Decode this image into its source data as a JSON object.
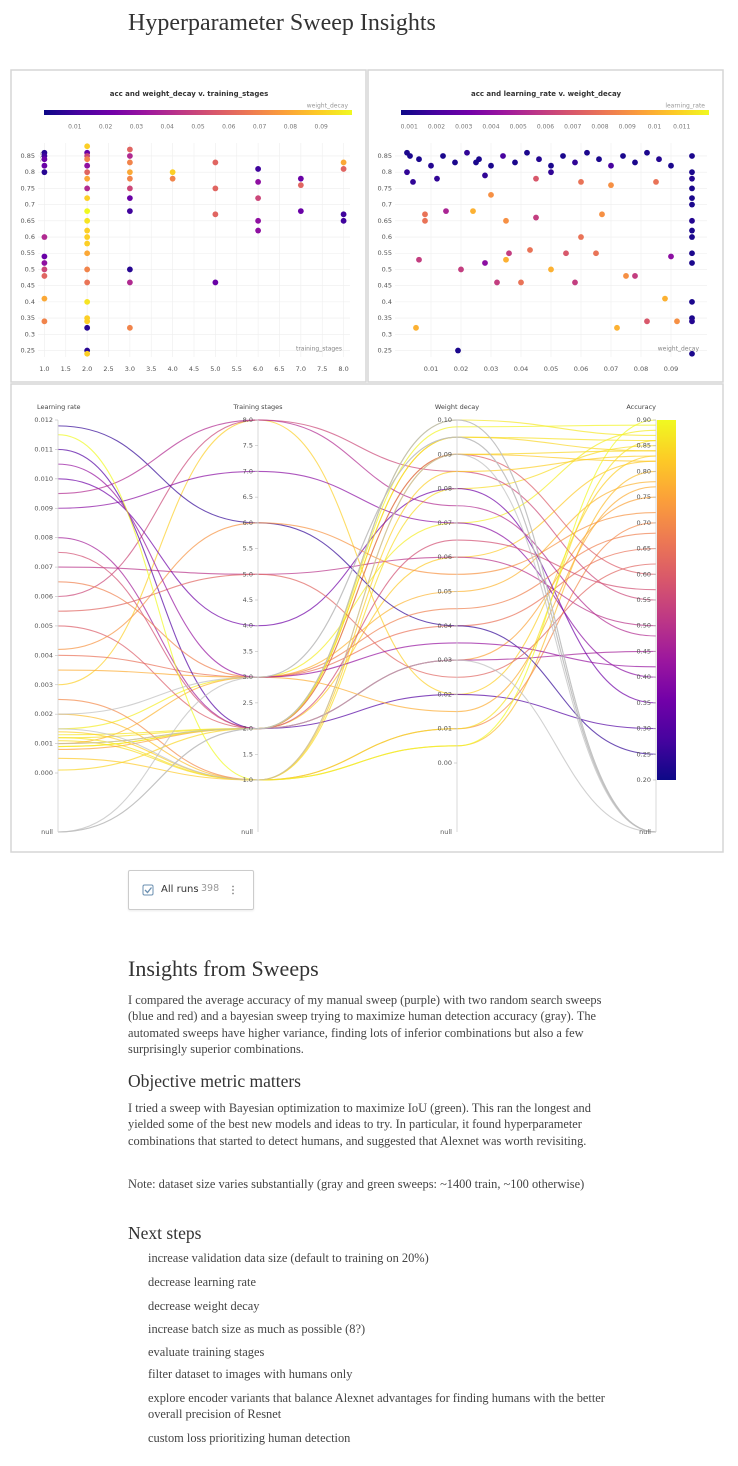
{
  "title": "Hyperparameter Sweep Insights",
  "chart_data": [
    {
      "type": "scatter",
      "title": "acc and weight_decay v. training_stages",
      "x_label": "training_stages",
      "y_label": "acc",
      "color_label": "weight_decay",
      "colormap": "plasma",
      "clim": [
        0,
        0.1
      ],
      "cticks": [
        0.01,
        0.02,
        0.03,
        0.04,
        0.05,
        0.06,
        0.07,
        0.08,
        0.09
      ],
      "xlim": [
        0.85,
        8.15
      ],
      "xticks": [
        {
          "value": 1,
          "label": "1.0"
        },
        {
          "value": 1.5,
          "label": "1.5"
        },
        {
          "value": 2,
          "label": "2.0"
        },
        {
          "value": 2.5,
          "label": "2.5"
        },
        {
          "value": 3,
          "label": "3.0"
        },
        {
          "value": 3.5,
          "label": "3.5"
        },
        {
          "value": 4,
          "label": "4.0"
        },
        {
          "value": 4.5,
          "label": "4.5"
        },
        {
          "value": 5,
          "label": "5.0"
        },
        {
          "value": 5.5,
          "label": "5.5"
        },
        {
          "value": 6,
          "label": "6.0"
        },
        {
          "value": 6.5,
          "label": "6.5"
        },
        {
          "value": 7,
          "label": "7.0"
        },
        {
          "value": 7.5,
          "label": "7.5"
        },
        {
          "value": 8,
          "label": "8.0"
        }
      ],
      "ylim": [
        0.23,
        0.89
      ],
      "yticks": [
        0.25,
        0.3,
        0.35,
        0.4,
        0.45,
        0.5,
        0.55,
        0.6,
        0.65,
        0.7,
        0.75,
        0.8,
        0.85
      ],
      "grid": true,
      "x": [
        1,
        1,
        1,
        1,
        1,
        1,
        1,
        1,
        1,
        1,
        1,
        1,
        2,
        2,
        2,
        2,
        2,
        2,
        2,
        2,
        2,
        2,
        2,
        2,
        2,
        2,
        2,
        2,
        2,
        2,
        2,
        2,
        2,
        2,
        2,
        3,
        3,
        3,
        3,
        3,
        3,
        3,
        3,
        3,
        3,
        3,
        4,
        4,
        5,
        5,
        5,
        5,
        6,
        6,
        6,
        6,
        6,
        7,
        7,
        7,
        8,
        8,
        8,
        8
      ],
      "values": [
        0.86,
        0.85,
        0.84,
        0.82,
        0.8,
        0.6,
        0.54,
        0.52,
        0.5,
        0.48,
        0.41,
        0.34,
        0.88,
        0.86,
        0.85,
        0.84,
        0.82,
        0.8,
        0.78,
        0.75,
        0.72,
        0.68,
        0.65,
        0.62,
        0.6,
        0.58,
        0.55,
        0.5,
        0.46,
        0.4,
        0.35,
        0.34,
        0.32,
        0.25,
        0.24,
        0.87,
        0.85,
        0.83,
        0.8,
        0.78,
        0.75,
        0.72,
        0.68,
        0.5,
        0.46,
        0.32,
        0.8,
        0.78,
        0.83,
        0.75,
        0.67,
        0.46,
        0.81,
        0.77,
        0.72,
        0.65,
        0.62,
        0.78,
        0.76,
        0.68,
        0.83,
        0.81,
        0.67,
        0.65
      ],
      "color_values": [
        0.005,
        0.01,
        0.02,
        0.02,
        0.005,
        0.04,
        0.02,
        0.03,
        0.05,
        0.06,
        0.08,
        0.07,
        0.09,
        0.02,
        0.05,
        0.07,
        0.03,
        0.06,
        0.08,
        0.04,
        0.09,
        0.1,
        0.095,
        0.09,
        0.09,
        0.09,
        0.08,
        0.07,
        0.065,
        0.095,
        0.09,
        0.09,
        0.005,
        0.005,
        0.09,
        0.06,
        0.04,
        0.07,
        0.08,
        0.07,
        0.05,
        0.02,
        0.01,
        0.005,
        0.04,
        0.07,
        0.09,
        0.07,
        0.06,
        0.06,
        0.06,
        0.02,
        0.01,
        0.03,
        0.05,
        0.03,
        0.03,
        0.02,
        0.06,
        0.02,
        0.08,
        0.06,
        0.01,
        0.01
      ]
    },
    {
      "type": "scatter",
      "title": "acc and learning_rate v. weight_decay",
      "x_label": "weight_decay",
      "color_label": "learning_rate",
      "colormap": "plasma",
      "clim": [
        0.0007,
        0.012
      ],
      "cticks": [
        0.001,
        0.002,
        0.003,
        0.004,
        0.005,
        0.006,
        0.007,
        0.008,
        0.009,
        0.01,
        0.011
      ],
      "xlim": [
        -0.002,
        0.102
      ],
      "xticks": [
        0.01,
        0.02,
        0.03,
        0.04,
        0.05,
        0.06,
        0.07,
        0.08,
        0.09
      ],
      "ylim": [
        0.23,
        0.89
      ],
      "yticks": [
        0.25,
        0.3,
        0.35,
        0.4,
        0.45,
        0.5,
        0.55,
        0.6,
        0.65,
        0.7,
        0.75,
        0.8,
        0.85
      ],
      "grid": true,
      "x": [
        0.002,
        0.006,
        0.01,
        0.014,
        0.018,
        0.022,
        0.026,
        0.03,
        0.034,
        0.038,
        0.042,
        0.046,
        0.05,
        0.054,
        0.058,
        0.062,
        0.066,
        0.07,
        0.074,
        0.078,
        0.082,
        0.086,
        0.09,
        0.003,
        0.025,
        0.002,
        0.004,
        0.012,
        0.028,
        0.05,
        0.097,
        0.097,
        0.097,
        0.097,
        0.097,
        0.097,
        0.097,
        0.097,
        0.097,
        0.097,
        0.097,
        0.097,
        0.097,
        0.097,
        0.097,
        0.005,
        0.006,
        0.008,
        0.008,
        0.015,
        0.02,
        0.019,
        0.024,
        0.028,
        0.03,
        0.032,
        0.035,
        0.036,
        0.035,
        0.04,
        0.043,
        0.045,
        0.05,
        0.055,
        0.058,
        0.06,
        0.065,
        0.067,
        0.072,
        0.075,
        0.078,
        0.082,
        0.088,
        0.092,
        0.09,
        0.06,
        0.07,
        0.045,
        0.085
      ],
      "values": [
        0.86,
        0.84,
        0.82,
        0.85,
        0.83,
        0.86,
        0.84,
        0.82,
        0.85,
        0.83,
        0.86,
        0.84,
        0.82,
        0.85,
        0.83,
        0.86,
        0.84,
        0.82,
        0.85,
        0.83,
        0.86,
        0.84,
        0.82,
        0.85,
        0.83,
        0.8,
        0.77,
        0.78,
        0.79,
        0.8,
        0.85,
        0.8,
        0.78,
        0.75,
        0.72,
        0.7,
        0.65,
        0.62,
        0.6,
        0.55,
        0.52,
        0.4,
        0.35,
        0.34,
        0.24,
        0.32,
        0.53,
        0.67,
        0.65,
        0.68,
        0.5,
        0.25,
        0.68,
        0.52,
        0.73,
        0.46,
        0.65,
        0.55,
        0.53,
        0.46,
        0.56,
        0.66,
        0.5,
        0.55,
        0.46,
        0.6,
        0.55,
        0.67,
        0.32,
        0.48,
        0.48,
        0.34,
        0.41,
        0.34,
        0.54,
        0.77,
        0.76,
        0.78,
        0.77
      ],
      "color_values": [
        0.001,
        0.001,
        0.0012,
        0.001,
        0.001,
        0.0015,
        0.001,
        0.001,
        0.002,
        0.001,
        0.001,
        0.0012,
        0.001,
        0.001,
        0.0015,
        0.001,
        0.001,
        0.002,
        0.001,
        0.001,
        0.001,
        0.0012,
        0.001,
        0.001,
        0.001,
        0.0015,
        0.0015,
        0.0015,
        0.0015,
        0.0015,
        0.001,
        0.001,
        0.0012,
        0.001,
        0.001,
        0.001,
        0.0012,
        0.001,
        0.001,
        0.001,
        0.001,
        0.001,
        0.001,
        0.0012,
        0.001,
        0.01,
        0.006,
        0.008,
        0.008,
        0.005,
        0.006,
        0.001,
        0.01,
        0.004,
        0.009,
        0.006,
        0.009,
        0.006,
        0.01,
        0.008,
        0.008,
        0.006,
        0.01,
        0.007,
        0.006,
        0.008,
        0.008,
        0.009,
        0.01,
        0.009,
        0.006,
        0.007,
        0.01,
        0.009,
        0.004,
        0.008,
        0.009,
        0.007,
        0.008
      ]
    },
    {
      "type": "parallel",
      "colormap": "plasma",
      "color_dimension": 3,
      "null_color": "#bdbdbd",
      "null_label": "null",
      "dimensions": [
        {
          "label": "Learning rate",
          "ylim": [
            0,
            0.012
          ],
          "yticks": [
            {
              "value": 0,
              "label": "0.000"
            },
            {
              "value": 0.001,
              "label": "0.001"
            },
            {
              "value": 0.002,
              "label": "0.002"
            },
            {
              "value": 0.003,
              "label": "0.003"
            },
            {
              "value": 0.004,
              "label": "0.004"
            },
            {
              "value": 0.005,
              "label": "0.005"
            },
            {
              "value": 0.006,
              "label": "0.006"
            },
            {
              "value": 0.007,
              "label": "0.007"
            },
            {
              "value": 0.008,
              "label": "0.008"
            },
            {
              "value": 0.009,
              "label": "0.009"
            },
            {
              "value": 0.01,
              "label": "0.010"
            },
            {
              "value": 0.011,
              "label": "0.011"
            },
            {
              "value": 0.012,
              "label": "0.012"
            }
          ]
        },
        {
          "label": "Training stages",
          "ylim": [
            1,
            8
          ],
          "yticks": [
            {
              "value": 1,
              "label": "1.0"
            },
            {
              "value": 1.5,
              "label": "1.5"
            },
            {
              "value": 2,
              "label": "2.0"
            },
            {
              "value": 2.5,
              "label": "2.5"
            },
            {
              "value": 3,
              "label": "3.0"
            },
            {
              "value": 3.5,
              "label": "3.5"
            },
            {
              "value": 4,
              "label": "4.0"
            },
            {
              "value": 4.5,
              "label": "4.5"
            },
            {
              "value": 5,
              "label": "5.0"
            },
            {
              "value": 5.5,
              "label": "5.5"
            },
            {
              "value": 6,
              "label": "6.0"
            },
            {
              "value": 6.5,
              "label": "6.5"
            },
            {
              "value": 7,
              "label": "7.0"
            },
            {
              "value": 7.5,
              "label": "7.5"
            },
            {
              "value": 8,
              "label": "8.0"
            }
          ]
        },
        {
          "label": "Weight decay",
          "ylim": [
            0,
            0.1
          ],
          "yticks": [
            {
              "value": 0,
              "label": "0.00"
            },
            {
              "value": 0.01,
              "label": "0.01"
            },
            {
              "value": 0.02,
              "label": "0.02"
            },
            {
              "value": 0.03,
              "label": "0.03"
            },
            {
              "value": 0.04,
              "label": "0.04"
            },
            {
              "value": 0.05,
              "label": "0.05"
            },
            {
              "value": 0.06,
              "label": "0.06"
            },
            {
              "value": 0.07,
              "label": "0.07"
            },
            {
              "value": 0.08,
              "label": "0.08"
            },
            {
              "value": 0.09,
              "label": "0.09"
            },
            {
              "value": 0.1,
              "label": "0.10"
            }
          ]
        },
        {
          "label": "Accuracy",
          "ylim": [
            0.2,
            0.9
          ],
          "yticks": [
            {
              "value": 0.2,
              "label": "0.20"
            },
            {
              "value": 0.25,
              "label": "0.25"
            },
            {
              "value": 0.3,
              "label": "0.30"
            },
            {
              "value": 0.35,
              "label": "0.35"
            },
            {
              "value": 0.4,
              "label": "0.40"
            },
            {
              "value": 0.45,
              "label": "0.45"
            },
            {
              "value": 0.5,
              "label": "0.50"
            },
            {
              "value": 0.55,
              "label": "0.55"
            },
            {
              "value": 0.6,
              "label": "0.60"
            },
            {
              "value": 0.65,
              "label": "0.65"
            },
            {
              "value": 0.7,
              "label": "0.70"
            },
            {
              "value": 0.75,
              "label": "0.75"
            },
            {
              "value": 0.8,
              "label": "0.80"
            },
            {
              "value": 0.85,
              "label": "0.85"
            },
            {
              "value": 0.9,
              "label": "0.90"
            }
          ]
        }
      ],
      "runs": [
        [
          0.0012,
          2,
          0.095,
          0.86
        ],
        [
          0.001,
          2,
          0.09,
          0.84
        ],
        [
          0.0011,
          1,
          0.08,
          0.85
        ],
        [
          0.0009,
          2,
          0.06,
          0.82
        ],
        [
          0.0015,
          3,
          0.07,
          0.88
        ],
        [
          0.002,
          1,
          0.005,
          0.8
        ],
        [
          0.0008,
          2,
          0.03,
          0.75
        ],
        [
          0.001,
          3,
          0.05,
          0.78
        ],
        [
          0.0013,
          2,
          0.1,
          0.87
        ],
        [
          0.0025,
          1,
          0.01,
          0.7
        ],
        [
          0.003,
          8,
          0.02,
          0.83
        ],
        [
          0.004,
          3,
          0.04,
          0.65
        ],
        [
          0.005,
          2,
          0.09,
          0.6
        ],
        [
          0.006,
          8,
          0.085,
          0.55
        ],
        [
          0.007,
          5,
          0.06,
          0.5
        ],
        [
          0.008,
          2,
          0.03,
          0.45
        ],
        [
          0.009,
          7,
          0.07,
          0.4
        ],
        [
          0.01,
          4,
          0.08,
          0.35
        ],
        [
          0.011,
          2,
          0.02,
          0.3
        ],
        [
          0.0118,
          6,
          0.04,
          0.25
        ],
        [
          0.0005,
          1,
          0.09,
          0.82
        ],
        [
          0.0001,
          2,
          0.095,
          0.84
        ],
        [
          0.0035,
          3,
          0.015,
          0.77
        ],
        [
          0.0042,
          6,
          0.055,
          0.72
        ],
        [
          0.0055,
          5,
          0.025,
          0.62
        ],
        [
          0.0065,
          3,
          0.045,
          0.68
        ],
        [
          0.0075,
          2,
          0.065,
          0.57
        ],
        [
          0.0095,
          8,
          0.075,
          0.48
        ],
        [
          0.0105,
          3,
          0.035,
          0.42
        ],
        [
          0.0115,
          1,
          0.005,
          0.9
        ],
        [
          0.0012,
          1,
          0.01,
          0.86
        ],
        [
          0.0009,
          2,
          0.098,
          0.89
        ],
        [
          0.0014,
          1,
          0.085,
          0.83
        ],
        [
          null,
          2,
          0.1,
          null
        ],
        [
          null,
          3,
          0.095,
          null
        ],
        [
          null,
          2,
          0.03,
          null
        ],
        [
          0.001,
          2,
          0.1,
          null
        ],
        [
          0.002,
          3,
          0.095,
          null
        ],
        [
          0.0015,
          1,
          0.09,
          null
        ]
      ]
    }
  ],
  "run_set": {
    "label": "All runs",
    "count": 398
  },
  "sections": [
    {
      "heading": "Insights from Sweeps",
      "paragraphs": [
        "I compared the average accuracy of my manual sweep (purple) with two random search sweeps (blue and red) and a bayesian sweep trying to maximize human detection accuracy (gray). The automated sweeps have higher variance, finding lots of inferior combinations but also a few surprisingly superior combinations."
      ]
    },
    {
      "heading": "Objective metric matters",
      "paragraphs": [
        "I tried a sweep with Bayesian optimization to maximize IoU (green). This ran the longest and yielded some of the best new models and ideas to try. In particular, it found hyperparameter combinations that started to detect humans, and suggested that Alexnet was worth revisiting.",
        "Note: dataset size varies substantially (gray and green sweeps: ~1400 train, ~100 otherwise)"
      ]
    },
    {
      "heading": "Next steps",
      "items": [
        "increase validation data size (default to training on 20%)",
        "decrease learning rate",
        "decrease weight decay",
        "increase batch size as much as possible (8?)",
        "evaluate training stages",
        "filter dataset to images with humans only",
        "explore encoder variants that balance Alexnet advantages for finding humans with the better overall precision of Resnet",
        "custom loss prioritizing human detection"
      ]
    }
  ]
}
